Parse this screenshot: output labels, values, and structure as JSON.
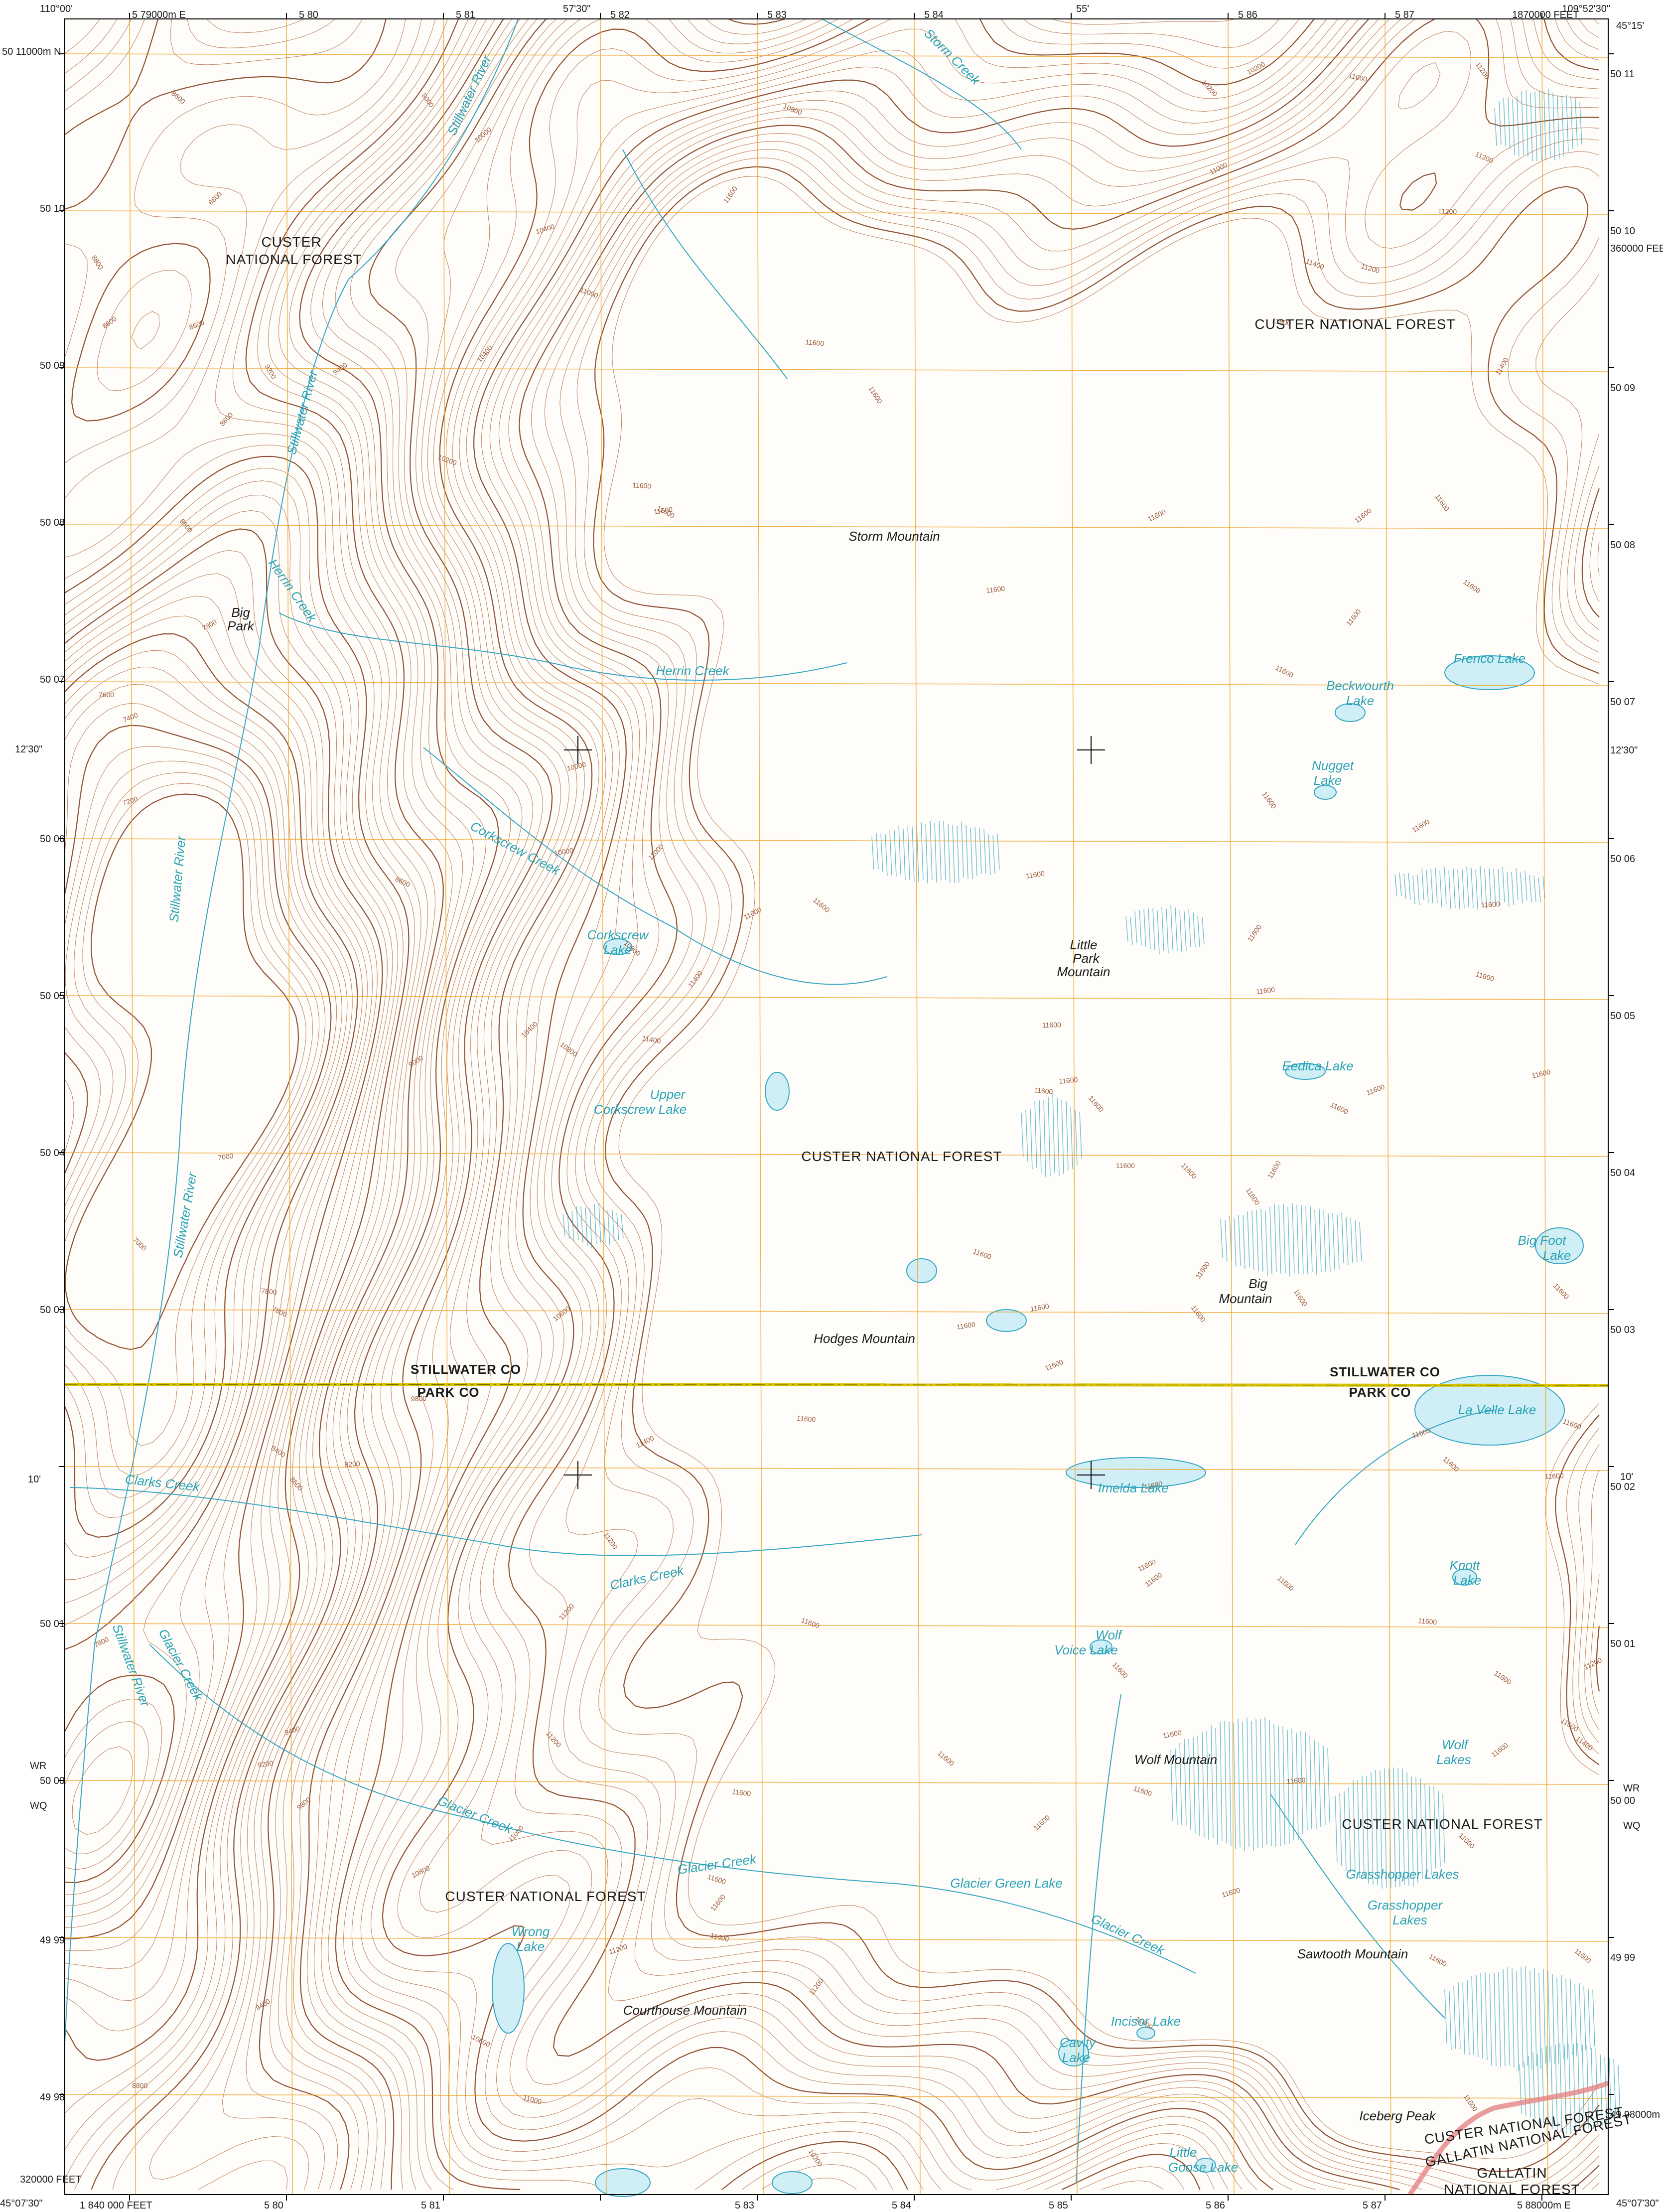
{
  "corners": {
    "nw_lon": "110°00'",
    "ne_lon": "109°52'30\"",
    "ne_lat": "45°15'",
    "sw_lat": "45°07'30\"",
    "se_lat": "45°07'30\""
  },
  "top_ticks": [
    {
      "label": "5 79000m E"
    },
    {
      "label": "5 80"
    },
    {
      "label": "5 81"
    },
    {
      "label": "57'30\""
    },
    {
      "label": "5 82"
    },
    {
      "label": "5 83"
    },
    {
      "label": "5 84"
    },
    {
      "label": "55'"
    },
    {
      "label": "5 86"
    },
    {
      "label": "5 87"
    },
    {
      "label": "1870000 FEET"
    }
  ],
  "bottom_ticks": [
    {
      "label": "1 840 000 FEET"
    },
    {
      "label": "5 80"
    },
    {
      "label": "5 81"
    },
    {
      "label": "5 83"
    },
    {
      "label": "5 84"
    },
    {
      "label": "5 85"
    },
    {
      "label": "5 86"
    },
    {
      "label": "5 87"
    },
    {
      "label": "5 88000m E"
    }
  ],
  "left_ticks": [
    {
      "label": "50 11000m N"
    },
    {
      "label": "50 10"
    },
    {
      "label": "50 09"
    },
    {
      "label": "50 08"
    },
    {
      "label": "50 07"
    },
    {
      "label": "12'30\""
    },
    {
      "label": "50 06"
    },
    {
      "label": "50 05"
    },
    {
      "label": "50 04"
    },
    {
      "label": "50 03"
    },
    {
      "label": "10'"
    },
    {
      "label": "50 01"
    },
    {
      "label": "WR"
    },
    {
      "label": "50 00"
    },
    {
      "label": "WQ"
    },
    {
      "label": "49 99"
    },
    {
      "label": "49 98"
    },
    {
      "label": "320000 FEET"
    }
  ],
  "right_ticks": [
    {
      "label": "50 11"
    },
    {
      "label": "50 10"
    },
    {
      "label": "360000 FEET"
    },
    {
      "label": "50 09"
    },
    {
      "label": "50 08"
    },
    {
      "label": "50 07"
    },
    {
      "label": "12'30\""
    },
    {
      "label": "50 06"
    },
    {
      "label": "50 05"
    },
    {
      "label": "50 04"
    },
    {
      "label": "50 03"
    },
    {
      "label": "10'"
    },
    {
      "label": "50 02"
    },
    {
      "label": "50 01"
    },
    {
      "label": "WR"
    },
    {
      "label": "50 00"
    },
    {
      "label": "WQ"
    },
    {
      "label": "49 99"
    },
    {
      "label": "49 98000m N"
    }
  ],
  "features": {
    "custer_nf_nw_1": "CUSTER",
    "custer_nf_nw_2": "NATIONAL FOREST",
    "custer_nf_ne": "CUSTER NATIONAL FOREST",
    "custer_nf_center": "CUSTER NATIONAL FOREST",
    "custer_nf_se": "CUSTER NATIONAL FOREST",
    "custer_nf_sw": "CUSTER NATIONAL FOREST",
    "custer_nf_boundary": "CUSTER NATIONAL FOREST",
    "gallatin_nf_boundary": "GALLATIN NATIONAL FOREST",
    "gallatin_nf_1": "GALLATIN",
    "gallatin_nf_2": "NATIONAL FOREST",
    "stillwater_co_w": "STILLWATER CO",
    "park_co_w": "PARK CO",
    "stillwater_co_e": "STILLWATER CO",
    "park_co_e": "PARK CO",
    "storm_mountain": "Storm Mountain",
    "big_park_1": "Big",
    "big_park_2": "Park",
    "little_park_1": "Little",
    "little_park_2": "Park",
    "little_park_3": "Mountain",
    "big_mountain_1": "Big",
    "big_mountain_2": "Mountain",
    "hodges_mountain": "Hodges Mountain",
    "wolf_mountain": "Wolf Mountain",
    "sawtooth_mountain": "Sawtooth Mountain",
    "courthouse_mountain": "Courthouse Mountain",
    "iceberg_peak": "Iceberg Peak",
    "storm_creek": "Storm Creek",
    "stillwater_river_n": "Stillwater River",
    "stillwater_river_2": "Stillwater River",
    "stillwater_river_3": "Stillwater River",
    "stillwater_river_4": "Stillwater River",
    "stillwater_river_5": "Stillwater River",
    "herrin_creek_1": "Herrin Creek",
    "herrin_creek_2": "Herrin Creek",
    "corkscrew_creek": "Corkscrew Creek",
    "clarks_creek_1": "Clarks Creek",
    "clarks_creek_2": "Clarks Creek",
    "glacier_creek_1": "Glacier Creek",
    "glacier_creek_2": "Glacier Creek",
    "glacier_creek_3": "Glacier Creek",
    "glacier_creek_4": "Glacier Creek",
    "frenco_lake": "Frenco Lake",
    "beckwourth_lake_1": "Beckwourth",
    "beckwourth_lake_2": "Lake",
    "nugget_lake_1": "Nugget",
    "nugget_lake_2": "Lake",
    "corkscrew_lake_1": "Corkscrew",
    "corkscrew_lake_2": "Lake",
    "upper_corkscrew_1": "Upper",
    "upper_corkscrew_2": "Corkscrew Lake",
    "eedica_lake": "Eedica Lake",
    "big_foot_lake_1": "Big Foot",
    "big_foot_lake_2": "Lake",
    "la_velle_lake": "La Velle Lake",
    "imelda_lake": "Imelda Lake",
    "knott_lake_1": "Knott",
    "knott_lake_2": "Lake",
    "wolf_voice_lake_1": "Wolf",
    "wolf_voice_lake_2": "Voice Lake",
    "wolf_lakes_1": "Wolf",
    "wolf_lakes_2": "Lakes",
    "grasshopper_lakes_a": "Grasshopper Lakes",
    "grasshopper_lakes_b1": "Grasshopper",
    "grasshopper_lakes_b2": "Lakes",
    "glacier_green_lake": "Glacier Green Lake",
    "wrong_lake_1": "Wrong",
    "wrong_lake_2": "Lake",
    "incisor_lake": "Incisor Lake",
    "cavity_lake_1": "Cavity",
    "cavity_lake_2": "Lake",
    "little_goose_lake_1": "Little",
    "little_goose_lake_2": "Goose Lake"
  },
  "elevation_labels": [
    "7000",
    "7200",
    "7400",
    "7600",
    "7800",
    "8000",
    "8200",
    "8400",
    "8600",
    "8800",
    "9000",
    "9200",
    "9400",
    "9600",
    "9800",
    "10000",
    "10200",
    "10400",
    "10600",
    "10800",
    "11000",
    "11200",
    "11400",
    "11600"
  ],
  "colors": {
    "contour": "#b36b45",
    "contour_index": "#8a4a2a",
    "water": "#35a7c4",
    "water_fill": "#cfeef5",
    "grid": "#f0a020",
    "county_line": "#d9c200",
    "forest_boundary": "#e38585",
    "neatline": "#000000"
  }
}
